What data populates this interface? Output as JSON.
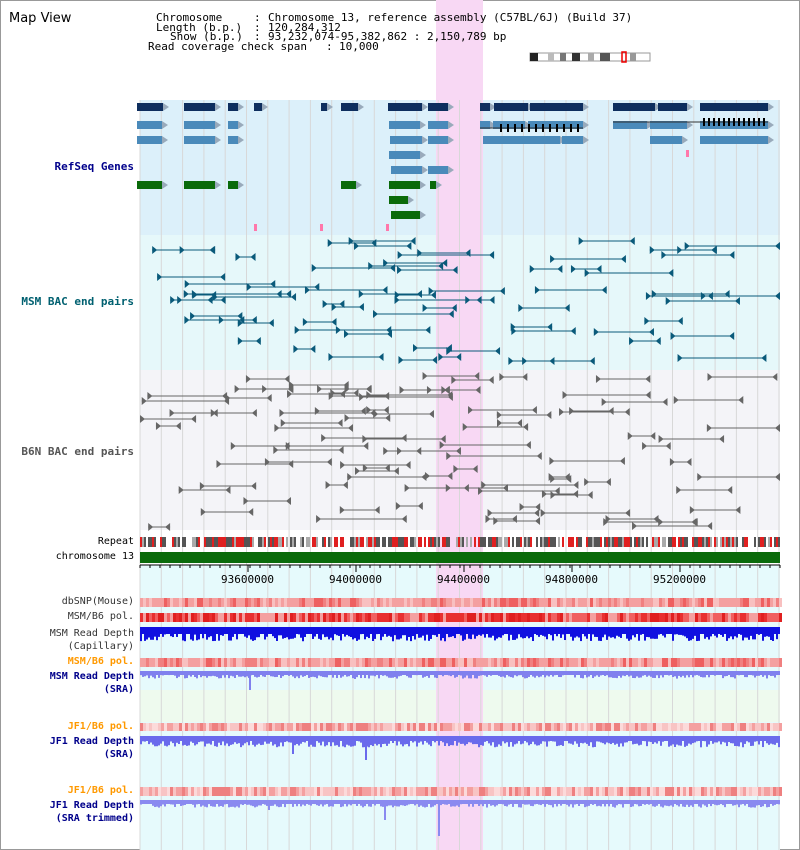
{
  "window": {
    "title": "Map View"
  },
  "info": {
    "chromosome_key": "Chromosome",
    "chromosome_value": "Chromosome 13, reference assembly (C57BL/6J) (Build 37)",
    "length_key": "Length (b.p.)",
    "length_value": "120,284,312",
    "show_key": "Show (b.p.)",
    "show_value": "93,232,074-95,382,862 : 2,150,789 bp",
    "coverage_key": "Read coverage check span",
    "coverage_value": "10,000"
  },
  "tracks": {
    "refseq": "RefSeq Genes",
    "msm_bac": "MSM BAC end pairs",
    "b6n_bac": "B6N BAC end pairs",
    "repeat": "Repeat",
    "chromosome": "chromosome 13",
    "dbsnp": "dbSNP(Mouse)",
    "msm_pol_1": "MSM/B6 pol.",
    "msm_depth_cap_1": "MSM Read Depth",
    "msm_depth_cap_2": "(Capillary)",
    "msm_pol_2": "MSM/B6 pol.",
    "msm_depth_sra_1": "MSM Read Depth",
    "msm_depth_sra_2": "(SRA)",
    "jf1_pol_1": "JF1/B6 pol.",
    "jf1_depth_1": "JF1 Read Depth",
    "jf1_depth_2": "(SRA)",
    "jf1_pol_2": "JF1/B6 pol.",
    "jf1_trim_1": "JF1 Read Depth",
    "jf1_trim_2": "(SRA trimmed)"
  },
  "axis": {
    "ticks": [
      "93600000",
      "94000000",
      "94400000",
      "94800000",
      "95200000"
    ]
  },
  "colors": {
    "refseq_bg": "#dcf0fa",
    "msm_bac_bg": "#e6f8fa",
    "b6n_bac_bg": "#f4f4f8",
    "highlight": "#f8d8f4",
    "gene_dark": "#0e2e5e",
    "gene_mid": "#4a8aba",
    "gene_green": "#0a6a0a",
    "label_navy": "#00008b",
    "label_teal": "#006070",
    "label_orange": "#ff9900"
  }
}
